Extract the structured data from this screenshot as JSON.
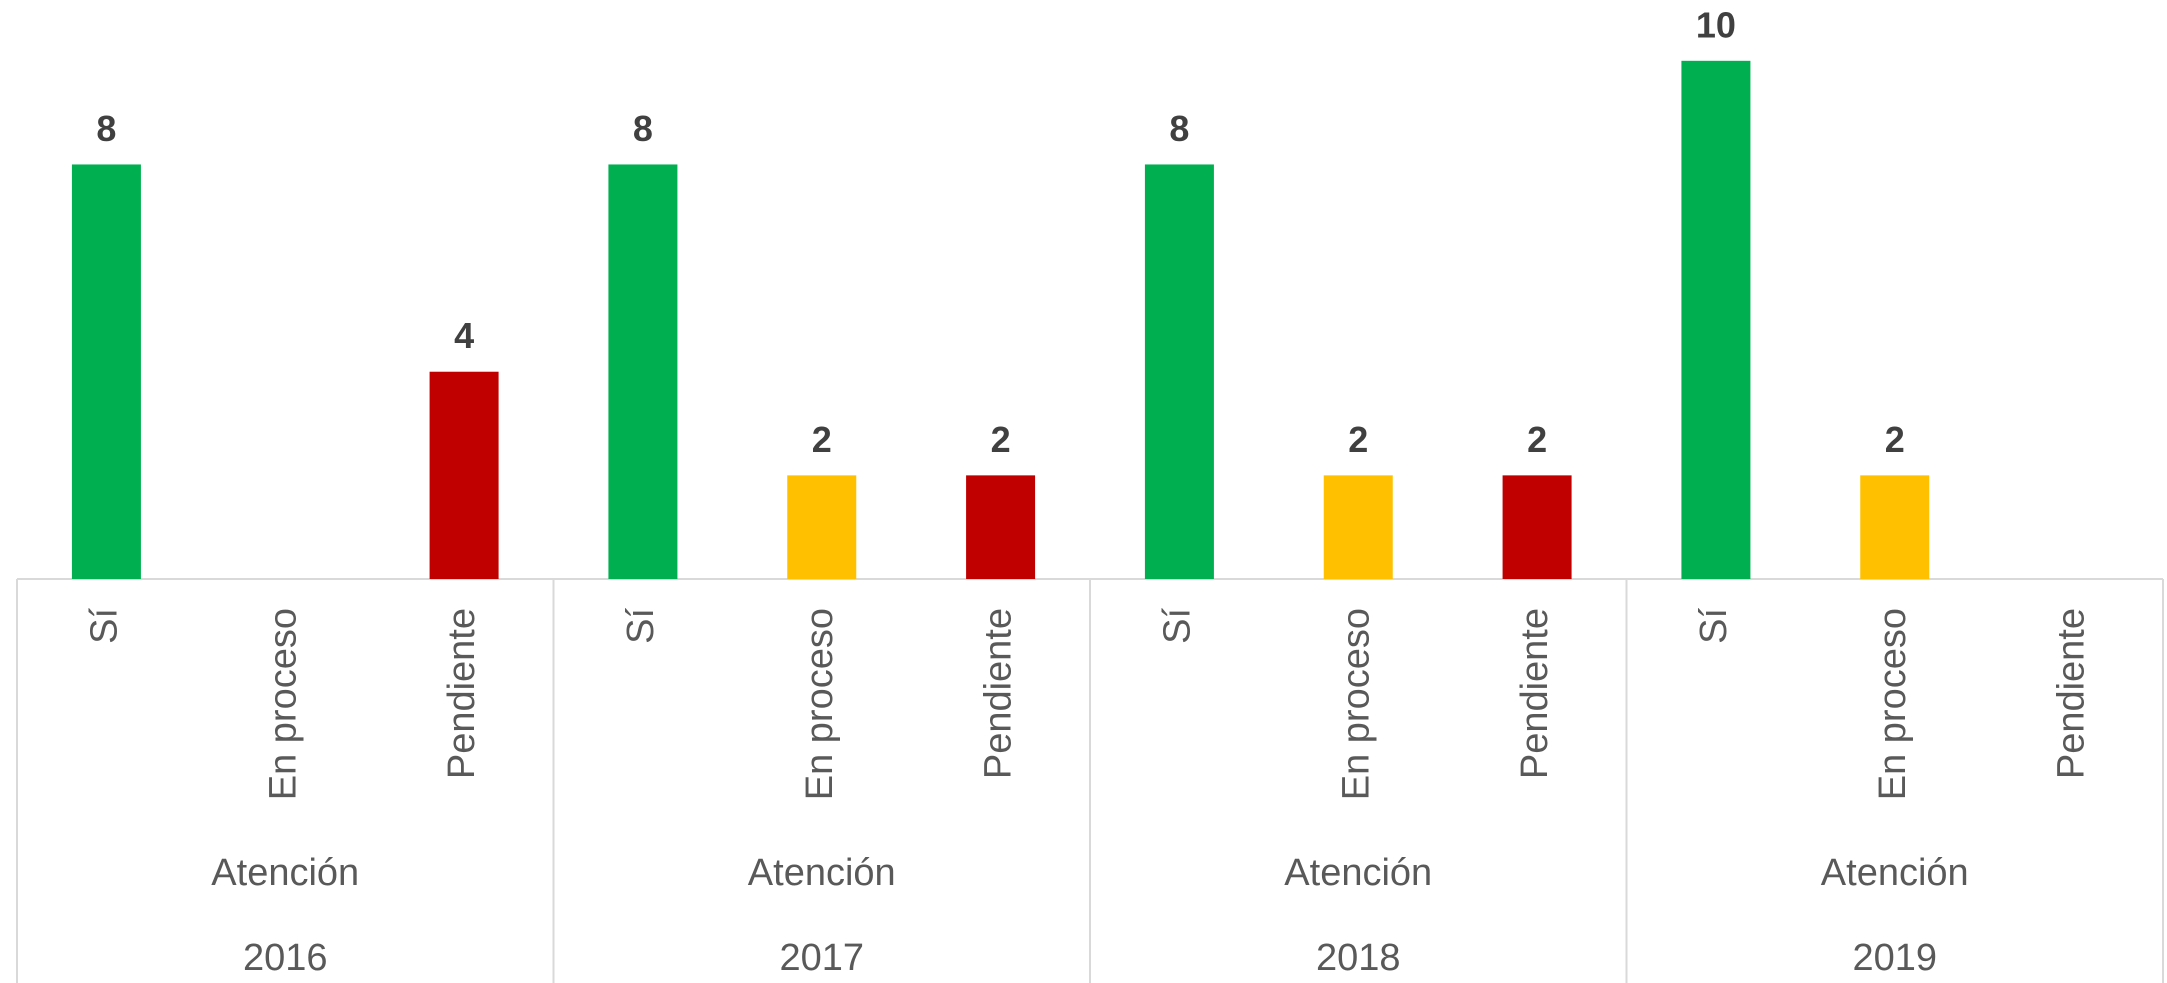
{
  "chart_data": {
    "type": "bar",
    "categories": [
      "Sí",
      "En proceso",
      "Pendiente",
      "Sí",
      "En proceso",
      "Pendiente",
      "Sí",
      "En proceso",
      "Pendiente",
      "Sí",
      "En proceso",
      "Pendiente"
    ],
    "values": [
      8,
      null,
      4,
      8,
      2,
      2,
      8,
      2,
      2,
      10,
      2,
      null
    ],
    "colors": [
      "#00b050",
      "#ffc000",
      "#c00000",
      "#00b050",
      "#ffc000",
      "#c00000",
      "#00b050",
      "#ffc000",
      "#c00000",
      "#00b050",
      "#ffc000",
      "#c00000"
    ],
    "groups": [
      {
        "label": "Atención",
        "year": "2016"
      },
      {
        "label": "Atención",
        "year": "2017"
      },
      {
        "label": "Atención",
        "year": "2018"
      },
      {
        "label": "Atención",
        "year": "2019"
      }
    ],
    "ylim": [
      0,
      11
    ]
  }
}
